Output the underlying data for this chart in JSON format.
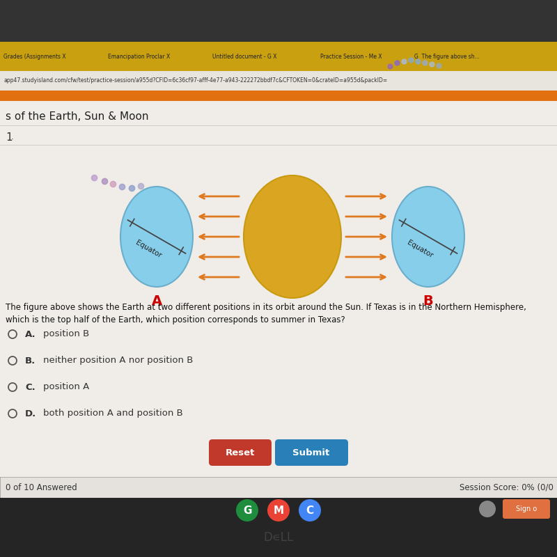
{
  "bg_top_color": "#3a3a3a",
  "tab_bar_color": "#d4a017",
  "url_bar_color": "#f0ede8",
  "orange_nav_color": "#d4660a",
  "content_bg": "#f0ede8",
  "header_bg": "#f0ede8",
  "orange_stripe_color": "#e8800a",
  "earth_color": "#87CEEB",
  "earth_edge_color": "#6aaecc",
  "sun_color": "#DAA520",
  "sun_edge_color": "#c89a10",
  "arrow_color": "#e07820",
  "equator_line_color": "#444444",
  "label_A_color": "#cc0000",
  "label_B_color": "#cc0000",
  "question_text_line1": "The figure above shows the Earth at two different positions in its orbit around the Sun. If Texas is in the Northern Hemisphere,",
  "question_text_line2": "which is the top half of the Earth, which position corresponds to summer in Texas?",
  "options": [
    {
      "label": "A.",
      "text": "position B"
    },
    {
      "label": "B.",
      "text": "neither position A nor position B"
    },
    {
      "label": "C.",
      "text": "position A"
    },
    {
      "label": "D.",
      "text": "both position A and position B"
    }
  ],
  "reset_btn_color": "#c0392b",
  "submit_btn_color": "#2980b9",
  "footer_bg": "#e8e5e0",
  "footer_text_left": "0 of 10 Answered",
  "footer_text_right": "Session Score: 0% (0/0",
  "taskbar_color": "#252525",
  "tab_labels": [
    "Grades (Assignments X",
    "Emancipation Proclar X",
    "Untitled document - G X",
    "Practice Session - Me X",
    "G  The figure above sh..."
  ],
  "url_text": "app47.studyisland.com/cfw/test/practice-session/a955d?CFID=6c36cf97-afff-4e77-a943-222272bbdf7c&CFTOKEN=0&crateID=a955d&packID=",
  "header_text": "s of the Earth, Sun & Moon",
  "question_num": "1",
  "dot_colors_top": [
    "#aa88cc",
    "#aa88cc",
    "#8899dd",
    "#aaaaee",
    "#8899cc",
    "#aaaacc",
    "#9999bb",
    "#8888bb"
  ],
  "dot_colors_diag": [
    "#bb99cc",
    "#aa88bb",
    "#cc99bb",
    "#9999cc",
    "#8899cc",
    "#aaaacc"
  ]
}
